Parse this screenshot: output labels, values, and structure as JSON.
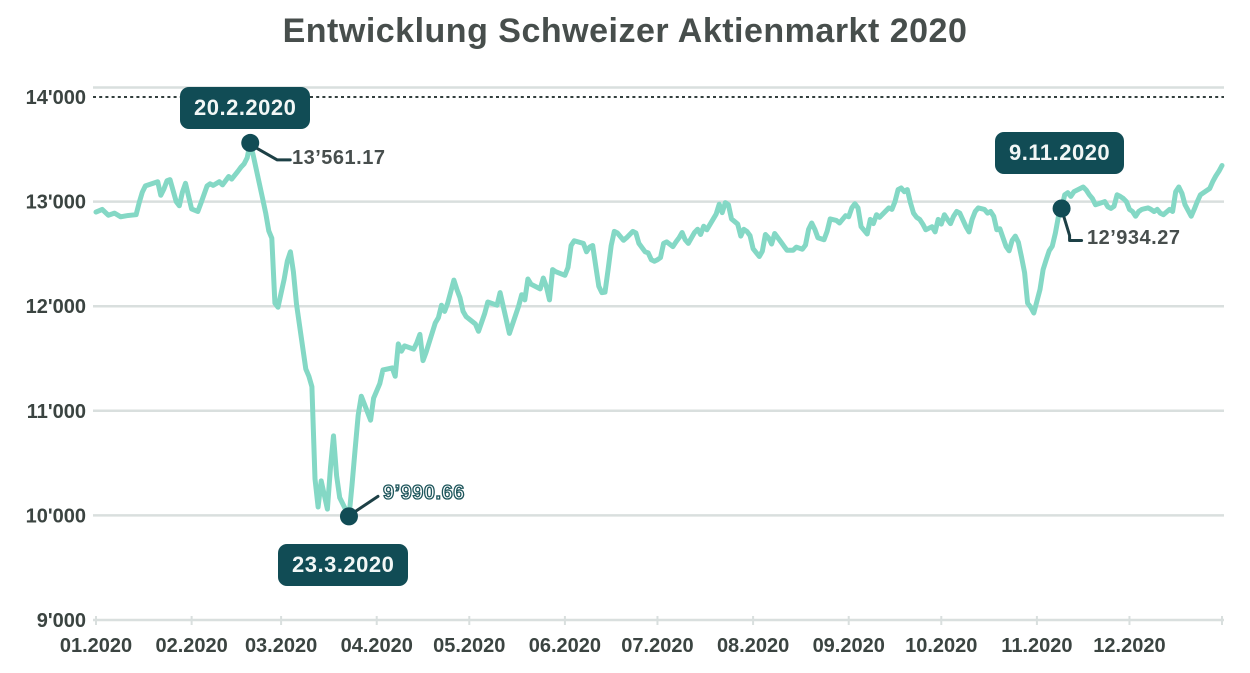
{
  "title": "Entwicklung Schweizer Aktienmarkt 2020",
  "colors": {
    "line": "#84d8c5",
    "annotation": "#114c55",
    "connector": "#1d4046",
    "gridline": "#d9dfde",
    "dashed_top_line": "#333f3e",
    "axis_text": "#3b4441",
    "title_text": "#474e4c",
    "value_text": "#474e4d",
    "badge_text": "#f2f7f6",
    "background": "#ffffff"
  },
  "chart_data": {
    "type": "line",
    "title": "Entwicklung Schweizer Aktienmarkt 2020",
    "grid": true,
    "legend": false,
    "x_axis": {
      "tick_labels": [
        "01.2020",
        "02.2020",
        "03.2020",
        "04.2020",
        "05.2020",
        "06.2020",
        "07.2020",
        "08.2020",
        "09.2020",
        "10.2020",
        "11.2020",
        "12.2020"
      ],
      "tick_days": [
        0,
        31,
        60,
        91,
        121,
        152,
        182,
        213,
        244,
        274,
        305,
        335
      ],
      "end_tick_day": 365,
      "range_days": [
        0,
        365
      ]
    },
    "y_axis": {
      "tick_labels": [
        "9'000",
        "10'000",
        "11'000",
        "12'000",
        "13'000",
        "14'000"
      ],
      "tick_values": [
        9000,
        10000,
        11000,
        12000,
        13000,
        14000
      ],
      "range": [
        9000,
        14000
      ]
    },
    "annotations": [
      {
        "kind": "peak",
        "date_label": "20.2.2020",
        "value_label": "13’561.17",
        "day": 50,
        "value": 13561.17
      },
      {
        "kind": "trough",
        "date_label": "23.3.2020",
        "value_label": "9’990.66",
        "day": 82,
        "value": 9990.66
      },
      {
        "kind": "recovery",
        "date_label": "9.11.2020",
        "value_label": "12’934.27",
        "day": 313,
        "value": 12934.27
      }
    ],
    "series": [
      {
        "points": [
          [
            0,
            12900
          ],
          [
            2,
            12925
          ],
          [
            4,
            12870
          ],
          [
            6,
            12890
          ],
          [
            8,
            12855
          ],
          [
            10,
            12865
          ],
          [
            13,
            12875
          ],
          [
            14,
            12990
          ],
          [
            15,
            13090
          ],
          [
            16,
            13150
          ],
          [
            17,
            13160
          ],
          [
            20,
            13190
          ],
          [
            21,
            13060
          ],
          [
            22,
            13120
          ],
          [
            23,
            13200
          ],
          [
            24,
            13210
          ],
          [
            26,
            13000
          ],
          [
            27,
            12960
          ],
          [
            28,
            13090
          ],
          [
            29,
            13175
          ],
          [
            31,
            12930
          ],
          [
            33,
            12905
          ],
          [
            34,
            12985
          ],
          [
            36,
            13150
          ],
          [
            37,
            13170
          ],
          [
            38,
            13155
          ],
          [
            40,
            13190
          ],
          [
            41,
            13160
          ],
          [
            43,
            13240
          ],
          [
            44,
            13215
          ],
          [
            46,
            13290
          ],
          [
            47,
            13330
          ],
          [
            48,
            13360
          ],
          [
            49,
            13420
          ],
          [
            50,
            13561.17
          ],
          [
            51,
            13440
          ],
          [
            54,
            13030
          ],
          [
            55,
            12890
          ],
          [
            56,
            12720
          ],
          [
            57,
            12650
          ],
          [
            58,
            12030
          ],
          [
            59,
            11990
          ],
          [
            61,
            12260
          ],
          [
            62,
            12430
          ],
          [
            63,
            12520
          ],
          [
            64,
            12330
          ],
          [
            65,
            12020
          ],
          [
            68,
            11400
          ],
          [
            69,
            11330
          ],
          [
            70,
            11230
          ],
          [
            71,
            10350
          ],
          [
            72,
            10080
          ],
          [
            73,
            10330
          ],
          [
            75,
            10060
          ],
          [
            76,
            10460
          ],
          [
            77,
            10760
          ],
          [
            78,
            10380
          ],
          [
            79,
            10170
          ],
          [
            82,
            9990.66
          ],
          [
            83,
            10290
          ],
          [
            84,
            10630
          ],
          [
            85,
            10960
          ],
          [
            86,
            11140
          ],
          [
            89,
            10910
          ],
          [
            90,
            11120
          ],
          [
            92,
            11260
          ],
          [
            93,
            11390
          ],
          [
            96,
            11410
          ],
          [
            97,
            11330
          ],
          [
            98,
            11640
          ],
          [
            99,
            11570
          ],
          [
            100,
            11620
          ],
          [
            103,
            11590
          ],
          [
            104,
            11650
          ],
          [
            105,
            11730
          ],
          [
            106,
            11480
          ],
          [
            107,
            11560
          ],
          [
            110,
            11840
          ],
          [
            111,
            11890
          ],
          [
            112,
            12010
          ],
          [
            113,
            11950
          ],
          [
            114,
            12030
          ],
          [
            116,
            12250
          ],
          [
            117,
            12160
          ],
          [
            118,
            12080
          ],
          [
            119,
            11950
          ],
          [
            120,
            11900
          ],
          [
            123,
            11830
          ],
          [
            124,
            11760
          ],
          [
            126,
            11930
          ],
          [
            127,
            12040
          ],
          [
            130,
            12010
          ],
          [
            131,
            12130
          ],
          [
            133,
            11870
          ],
          [
            134,
            11740
          ],
          [
            137,
            12000
          ],
          [
            138,
            12110
          ],
          [
            139,
            12060
          ],
          [
            140,
            12260
          ],
          [
            141,
            12210
          ],
          [
            144,
            12165
          ],
          [
            145,
            12270
          ],
          [
            146,
            12185
          ],
          [
            147,
            12060
          ],
          [
            148,
            12350
          ],
          [
            149,
            12330
          ],
          [
            152,
            12295
          ],
          [
            153,
            12370
          ],
          [
            154,
            12580
          ],
          [
            155,
            12625
          ],
          [
            158,
            12600
          ],
          [
            159,
            12520
          ],
          [
            160,
            12565
          ],
          [
            161,
            12580
          ],
          [
            162,
            12380
          ],
          [
            163,
            12190
          ],
          [
            164,
            12130
          ],
          [
            165,
            12135
          ],
          [
            166,
            12350
          ],
          [
            167,
            12580
          ],
          [
            168,
            12715
          ],
          [
            169,
            12700
          ],
          [
            171,
            12630
          ],
          [
            172,
            12655
          ],
          [
            174,
            12715
          ],
          [
            175,
            12700
          ],
          [
            176,
            12600
          ],
          [
            178,
            12520
          ],
          [
            179,
            12510
          ],
          [
            180,
            12445
          ],
          [
            181,
            12430
          ],
          [
            182,
            12445
          ],
          [
            183,
            12465
          ],
          [
            184,
            12600
          ],
          [
            185,
            12615
          ],
          [
            187,
            12570
          ],
          [
            188,
            12615
          ],
          [
            189,
            12655
          ],
          [
            190,
            12705
          ],
          [
            191,
            12635
          ],
          [
            192,
            12600
          ],
          [
            194,
            12705
          ],
          [
            195,
            12735
          ],
          [
            196,
            12685
          ],
          [
            197,
            12765
          ],
          [
            198,
            12730
          ],
          [
            201,
            12880
          ],
          [
            202,
            12975
          ],
          [
            203,
            12895
          ],
          [
            204,
            12990
          ],
          [
            205,
            12970
          ],
          [
            206,
            12835
          ],
          [
            208,
            12785
          ],
          [
            209,
            12670
          ],
          [
            210,
            12735
          ],
          [
            211,
            12715
          ],
          [
            212,
            12675
          ],
          [
            213,
            12550
          ],
          [
            215,
            12475
          ],
          [
            216,
            12525
          ],
          [
            217,
            12685
          ],
          [
            218,
            12655
          ],
          [
            219,
            12595
          ],
          [
            220,
            12695
          ],
          [
            222,
            12615
          ],
          [
            223,
            12575
          ],
          [
            224,
            12535
          ],
          [
            226,
            12535
          ],
          [
            227,
            12565
          ],
          [
            229,
            12545
          ],
          [
            230,
            12585
          ],
          [
            231,
            12735
          ],
          [
            232,
            12795
          ],
          [
            233,
            12735
          ],
          [
            234,
            12655
          ],
          [
            236,
            12635
          ],
          [
            237,
            12715
          ],
          [
            238,
            12835
          ],
          [
            240,
            12820
          ],
          [
            241,
            12795
          ],
          [
            243,
            12865
          ],
          [
            244,
            12855
          ],
          [
            245,
            12940
          ],
          [
            246,
            12980
          ],
          [
            247,
            12940
          ],
          [
            248,
            12760
          ],
          [
            250,
            12690
          ],
          [
            251,
            12830
          ],
          [
            252,
            12790
          ],
          [
            253,
            12875
          ],
          [
            254,
            12850
          ],
          [
            257,
            12940
          ],
          [
            258,
            12925
          ],
          [
            259,
            13000
          ],
          [
            260,
            13115
          ],
          [
            261,
            13130
          ],
          [
            262,
            13095
          ],
          [
            263,
            13115
          ],
          [
            264,
            12990
          ],
          [
            265,
            12890
          ],
          [
            266,
            12850
          ],
          [
            267,
            12830
          ],
          [
            268,
            12785
          ],
          [
            269,
            12730
          ],
          [
            271,
            12760
          ],
          [
            272,
            12710
          ],
          [
            273,
            12830
          ],
          [
            274,
            12785
          ],
          [
            275,
            12875
          ],
          [
            276,
            12830
          ],
          [
            277,
            12790
          ],
          [
            278,
            12860
          ],
          [
            279,
            12905
          ],
          [
            280,
            12890
          ],
          [
            282,
            12760
          ],
          [
            283,
            12710
          ],
          [
            284,
            12830
          ],
          [
            285,
            12905
          ],
          [
            286,
            12940
          ],
          [
            288,
            12925
          ],
          [
            289,
            12890
          ],
          [
            290,
            12905
          ],
          [
            291,
            12860
          ],
          [
            292,
            12730
          ],
          [
            293,
            12740
          ],
          [
            295,
            12570
          ],
          [
            296,
            12530
          ],
          [
            297,
            12630
          ],
          [
            298,
            12670
          ],
          [
            299,
            12610
          ],
          [
            300,
            12470
          ],
          [
            301,
            12320
          ],
          [
            302,
            12030
          ],
          [
            303,
            11990
          ],
          [
            304,
            11935
          ],
          [
            306,
            12160
          ],
          [
            307,
            12350
          ],
          [
            308,
            12445
          ],
          [
            309,
            12530
          ],
          [
            310,
            12575
          ],
          [
            311,
            12700
          ],
          [
            312,
            12860
          ],
          [
            313,
            12934.27
          ],
          [
            314,
            13065
          ],
          [
            315,
            13085
          ],
          [
            316,
            13050
          ],
          [
            317,
            13095
          ],
          [
            320,
            13140
          ],
          [
            321,
            13110
          ],
          [
            322,
            13065
          ],
          [
            323,
            13030
          ],
          [
            324,
            12970
          ],
          [
            327,
            13000
          ],
          [
            328,
            12950
          ],
          [
            329,
            12935
          ],
          [
            330,
            12955
          ],
          [
            331,
            13065
          ],
          [
            332,
            13050
          ],
          [
            333,
            13030
          ],
          [
            334,
            13000
          ],
          [
            335,
            12925
          ],
          [
            336,
            12905
          ],
          [
            337,
            12860
          ],
          [
            338,
            12905
          ],
          [
            339,
            12925
          ],
          [
            341,
            12940
          ],
          [
            342,
            12925
          ],
          [
            343,
            12905
          ],
          [
            344,
            12925
          ],
          [
            345,
            12890
          ],
          [
            346,
            12875
          ],
          [
            348,
            12925
          ],
          [
            349,
            12905
          ],
          [
            350,
            13095
          ],
          [
            351,
            13140
          ],
          [
            352,
            13080
          ],
          [
            353,
            12970
          ],
          [
            355,
            12860
          ],
          [
            356,
            12925
          ],
          [
            357,
            13000
          ],
          [
            358,
            13065
          ],
          [
            361,
            13125
          ],
          [
            362,
            13190
          ],
          [
            363,
            13245
          ],
          [
            364,
            13290
          ],
          [
            365,
            13345
          ]
        ]
      }
    ]
  }
}
